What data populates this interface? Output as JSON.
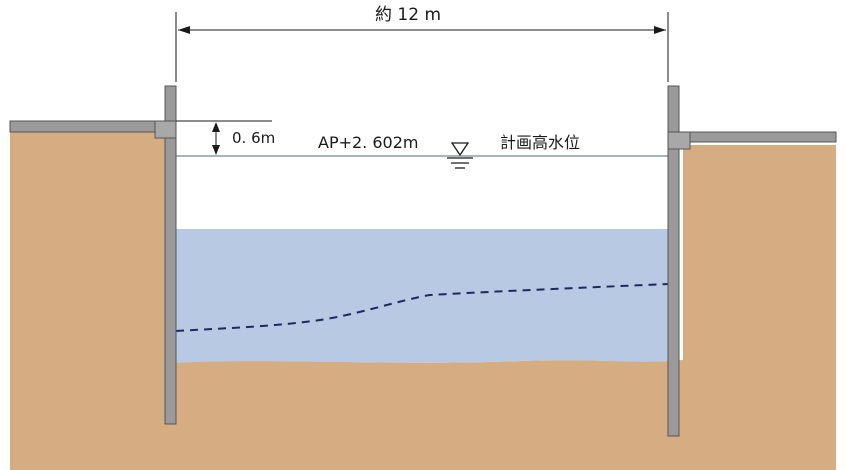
{
  "diagram": {
    "width_label": "約 12 m",
    "freeboard_label": "0. 6m",
    "water_level_value": "AP+2. 602m",
    "water_level_caption": "計画高水位",
    "colors": {
      "soil": "#d6ad83",
      "water": "#b7c9e3",
      "sheet_pile": "#9a9a9a",
      "outline": "#555555",
      "line": "#1a1a1a",
      "dashed_line": "#1f2a5a",
      "background": "#ffffff"
    }
  }
}
